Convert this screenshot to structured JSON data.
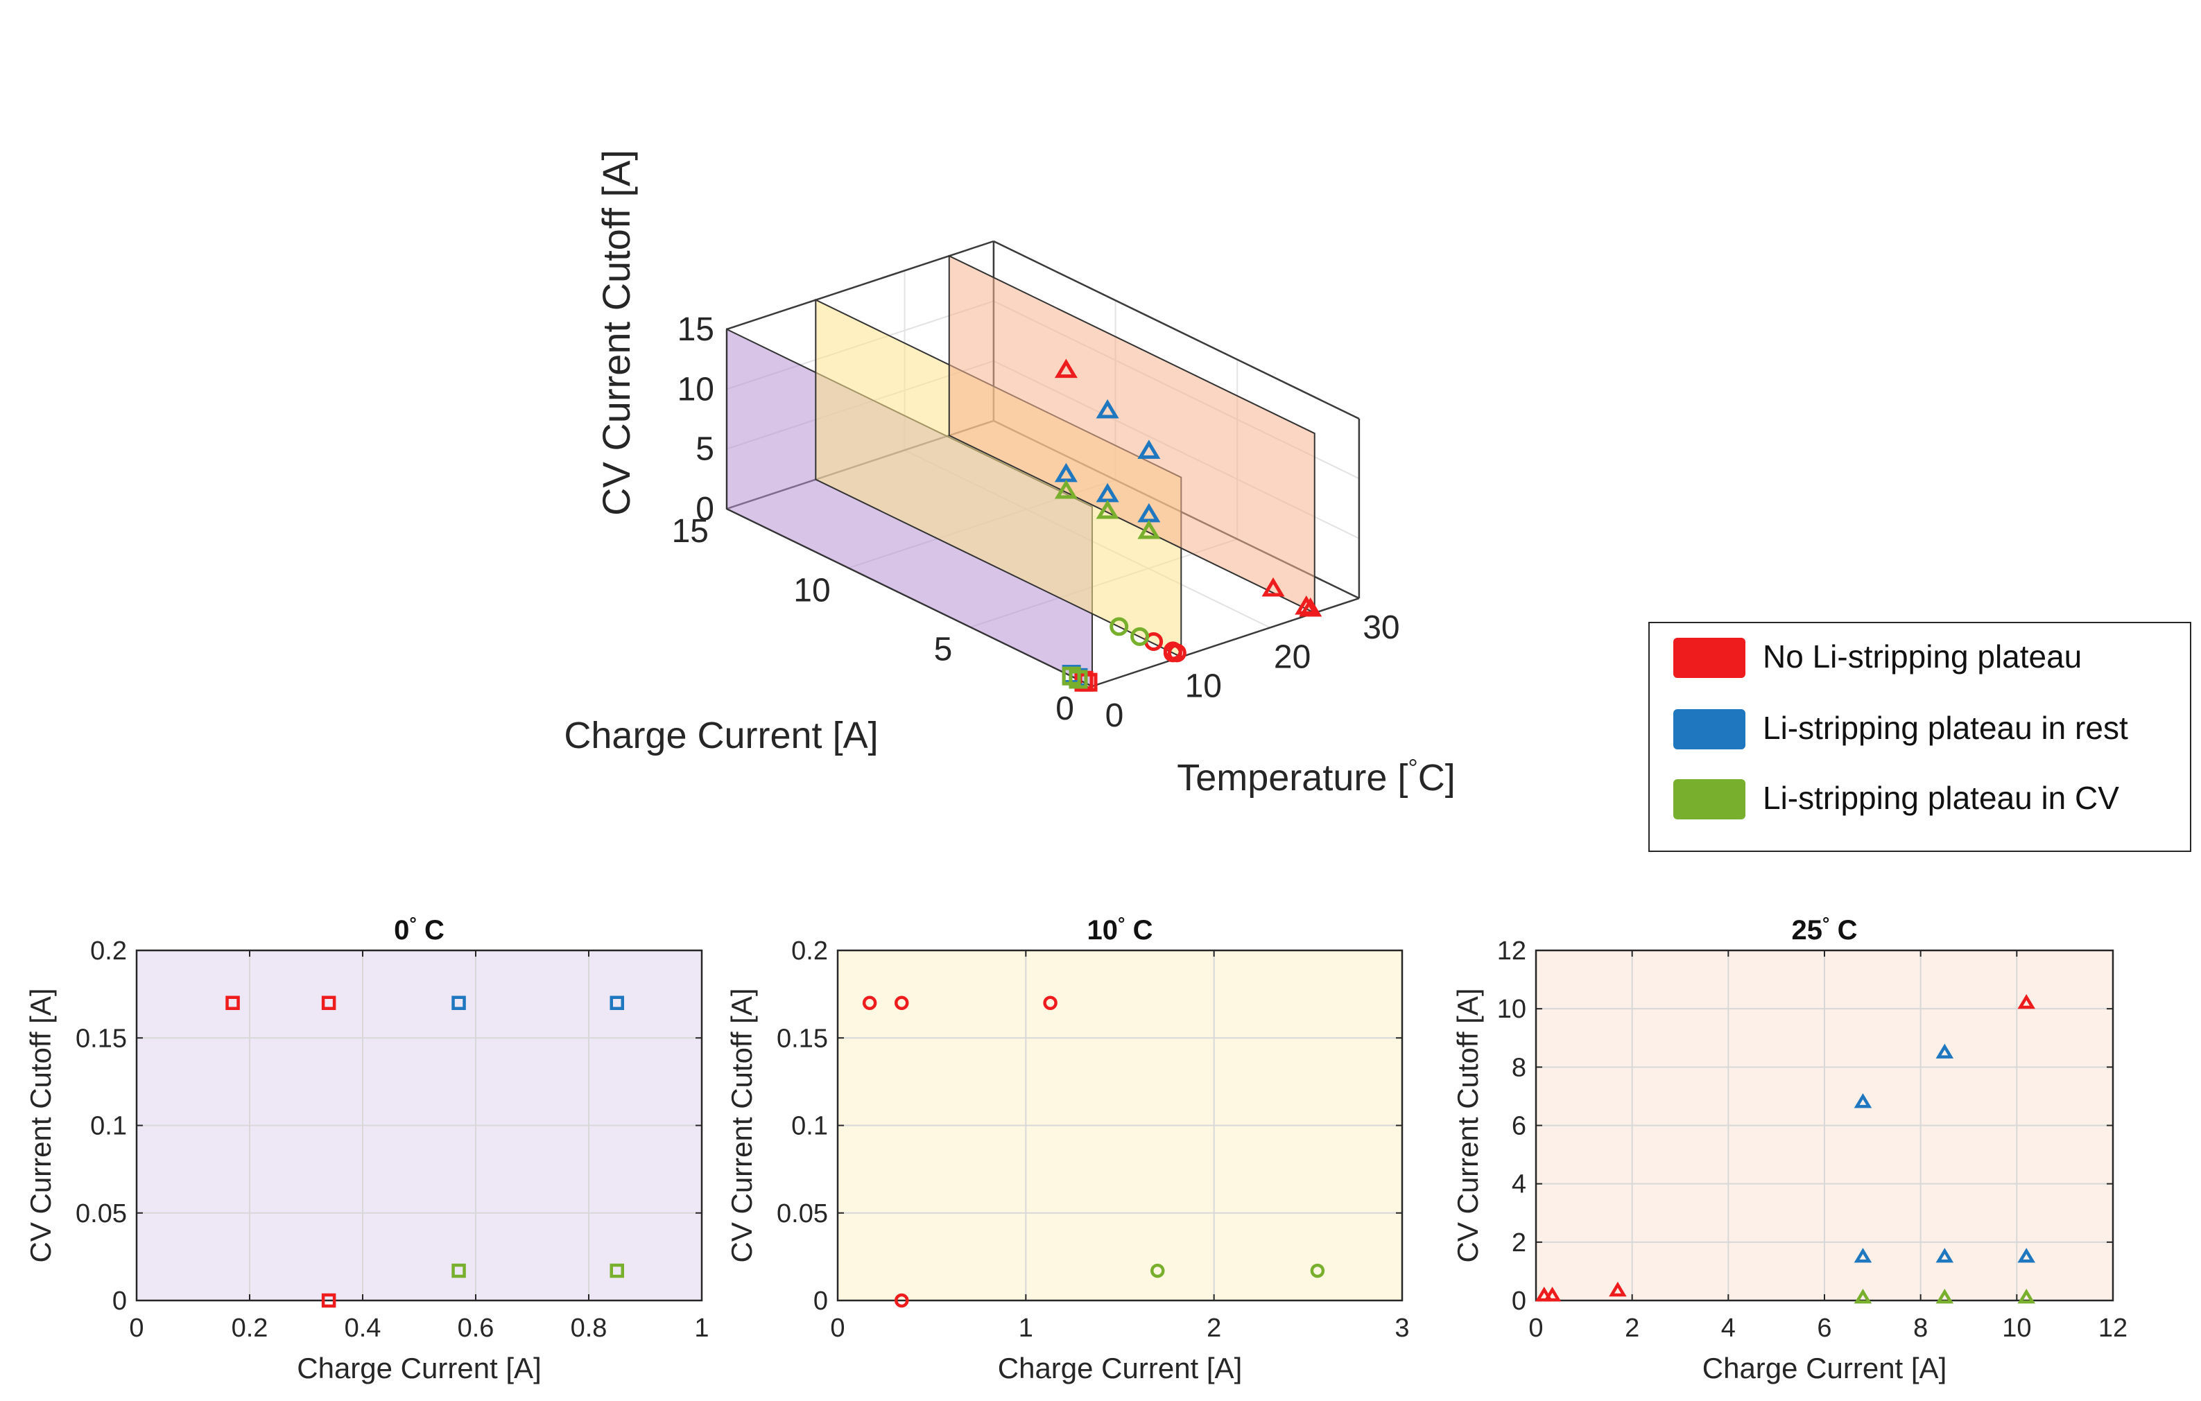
{
  "colors": {
    "red": "#ee1c1c",
    "blue": "#1f77c0",
    "green": "#78b02e",
    "plane_purple": "#b693d4",
    "plane_yellow": "#fde48c",
    "plane_orange": "#f8b490",
    "bg_purple": "#eee8f6",
    "bg_yellow": "#fef8e3",
    "bg_orange": "#fcf0e8"
  },
  "legend": {
    "entries": [
      {
        "label": "No Li-stripping plateau",
        "color": "#ee1c1c"
      },
      {
        "label": "Li-stripping plateau in rest",
        "color": "#1f77c0"
      },
      {
        "label": "Li-stripping plateau in CV",
        "color": "#78b02e"
      }
    ]
  },
  "chart_data": [
    {
      "type": "scatter3d",
      "title": "",
      "zlabel": "CV Current Cutoff [A]",
      "ylabel": "Charge Current [A]",
      "xlabel_prefix": "Temperature [",
      "xlabel_deg": "°",
      "xlabel_suffix": "C]",
      "xlim": [
        0,
        30
      ],
      "ylim": [
        0,
        15
      ],
      "zlim": [
        0,
        15
      ],
      "xticks": [
        "0",
        "10",
        "20",
        "30"
      ],
      "yticks": [
        "0",
        "5",
        "10",
        "15"
      ],
      "zticks": [
        "0",
        "5",
        "10",
        "15"
      ],
      "planes": [
        {
          "temperature": 0,
          "color": "plane_purple"
        },
        {
          "temperature": 10,
          "color": "plane_yellow"
        },
        {
          "temperature": 25,
          "color": "plane_orange"
        }
      ],
      "points": [
        {
          "t": 0,
          "x": 0.17,
          "y": 0.17,
          "marker": "square",
          "color": "red"
        },
        {
          "t": 0,
          "x": 0.34,
          "y": 0.17,
          "marker": "square",
          "color": "red"
        },
        {
          "t": 0,
          "x": 0.34,
          "y": 0,
          "marker": "square",
          "color": "red"
        },
        {
          "t": 0,
          "x": 0.57,
          "y": 0.17,
          "marker": "square",
          "color": "blue"
        },
        {
          "t": 0,
          "x": 0.85,
          "y": 0.17,
          "marker": "square",
          "color": "blue"
        },
        {
          "t": 0,
          "x": 0.57,
          "y": 0.017,
          "marker": "square",
          "color": "green"
        },
        {
          "t": 0,
          "x": 0.85,
          "y": 0.017,
          "marker": "square",
          "color": "green"
        },
        {
          "t": 10,
          "x": 0.17,
          "y": 0.17,
          "marker": "circle",
          "color": "red"
        },
        {
          "t": 10,
          "x": 0.34,
          "y": 0.17,
          "marker": "circle",
          "color": "red"
        },
        {
          "t": 10,
          "x": 1.13,
          "y": 0.17,
          "marker": "circle",
          "color": "red"
        },
        {
          "t": 10,
          "x": 0.34,
          "y": 0,
          "marker": "circle",
          "color": "red"
        },
        {
          "t": 10,
          "x": 1.7,
          "y": 0.017,
          "marker": "circle",
          "color": "green"
        },
        {
          "t": 10,
          "x": 2.55,
          "y": 0.017,
          "marker": "circle",
          "color": "green"
        },
        {
          "t": 25,
          "x": 0.17,
          "y": 0.17,
          "marker": "triangle",
          "color": "red"
        },
        {
          "t": 25,
          "x": 0.34,
          "y": 0.17,
          "marker": "triangle",
          "color": "red"
        },
        {
          "t": 25,
          "x": 1.7,
          "y": 0.34,
          "marker": "triangle",
          "color": "red"
        },
        {
          "t": 25,
          "x": 10.2,
          "y": 10.2,
          "marker": "triangle",
          "color": "red"
        },
        {
          "t": 25,
          "x": 6.8,
          "y": 6.8,
          "marker": "triangle",
          "color": "blue"
        },
        {
          "t": 25,
          "x": 8.5,
          "y": 8.5,
          "marker": "triangle",
          "color": "blue"
        },
        {
          "t": 25,
          "x": 6.8,
          "y": 1.5,
          "marker": "triangle",
          "color": "blue"
        },
        {
          "t": 25,
          "x": 8.5,
          "y": 1.5,
          "marker": "triangle",
          "color": "blue"
        },
        {
          "t": 25,
          "x": 10.2,
          "y": 1.5,
          "marker": "triangle",
          "color": "blue"
        },
        {
          "t": 25,
          "x": 6.8,
          "y": 0.1,
          "marker": "triangle",
          "color": "green"
        },
        {
          "t": 25,
          "x": 8.5,
          "y": 0.1,
          "marker": "triangle",
          "color": "green"
        },
        {
          "t": 25,
          "x": 10.2,
          "y": 0.1,
          "marker": "triangle",
          "color": "green"
        }
      ]
    },
    {
      "type": "scatter",
      "title_prefix": "0",
      "title_deg": "°",
      "title_suffix": " C",
      "xlabel": "Charge Current [A]",
      "ylabel": "CV Current Cutoff [A]",
      "xlim": [
        0,
        1
      ],
      "ylim": [
        0,
        0.2
      ],
      "xticks": [
        0,
        0.2,
        0.4,
        0.6,
        0.8,
        1
      ],
      "xtick_labels": [
        "0",
        "0.2",
        "0.4",
        "0.6",
        "0.8",
        "1"
      ],
      "yticks": [
        0,
        0.05,
        0.1,
        0.15,
        0.2
      ],
      "ytick_labels": [
        "0",
        "0.05",
        "0.1",
        "0.15",
        "0.2"
      ],
      "grid": true,
      "background": "bg_purple",
      "marker": "square",
      "points": [
        {
          "x": 0.17,
          "y": 0.17,
          "color": "red"
        },
        {
          "x": 0.34,
          "y": 0.17,
          "color": "red"
        },
        {
          "x": 0.34,
          "y": 0,
          "color": "red"
        },
        {
          "x": 0.57,
          "y": 0.17,
          "color": "blue"
        },
        {
          "x": 0.85,
          "y": 0.17,
          "color": "blue"
        },
        {
          "x": 0.57,
          "y": 0.017,
          "color": "green"
        },
        {
          "x": 0.85,
          "y": 0.017,
          "color": "green"
        }
      ]
    },
    {
      "type": "scatter",
      "title_prefix": "10",
      "title_deg": "°",
      "title_suffix": " C",
      "xlabel": "Charge Current [A]",
      "ylabel": "CV Current Cutoff [A]",
      "xlim": [
        0,
        3
      ],
      "ylim": [
        0,
        0.2
      ],
      "xticks": [
        0,
        1,
        2,
        3
      ],
      "xtick_labels": [
        "0",
        "1",
        "2",
        "3"
      ],
      "yticks": [
        0,
        0.05,
        0.1,
        0.15,
        0.2
      ],
      "ytick_labels": [
        "0",
        "0.05",
        "0.1",
        "0.15",
        "0.2"
      ],
      "grid": true,
      "background": "bg_yellow",
      "marker": "circle",
      "points": [
        {
          "x": 0.17,
          "y": 0.17,
          "color": "red"
        },
        {
          "x": 0.34,
          "y": 0.17,
          "color": "red"
        },
        {
          "x": 1.13,
          "y": 0.17,
          "color": "red"
        },
        {
          "x": 0.34,
          "y": 0,
          "color": "red"
        },
        {
          "x": 1.7,
          "y": 0.017,
          "color": "green"
        },
        {
          "x": 2.55,
          "y": 0.017,
          "color": "green"
        }
      ]
    },
    {
      "type": "scatter",
      "title_prefix": "25",
      "title_deg": "°",
      "title_suffix": " C",
      "xlabel": "Charge Current [A]",
      "ylabel": "CV Current Cutoff [A]",
      "xlim": [
        0,
        12
      ],
      "ylim": [
        0,
        12
      ],
      "xticks": [
        0,
        2,
        4,
        6,
        8,
        10,
        12
      ],
      "xtick_labels": [
        "0",
        "2",
        "4",
        "6",
        "8",
        "10",
        "12"
      ],
      "yticks": [
        0,
        2,
        4,
        6,
        8,
        10,
        12
      ],
      "ytick_labels": [
        "0",
        "2",
        "4",
        "6",
        "8",
        "10",
        "12"
      ],
      "grid": true,
      "background": "bg_orange",
      "marker": "triangle",
      "points": [
        {
          "x": 0.17,
          "y": 0.17,
          "color": "red"
        },
        {
          "x": 0.34,
          "y": 0.17,
          "color": "red"
        },
        {
          "x": 1.7,
          "y": 0.34,
          "color": "red"
        },
        {
          "x": 10.2,
          "y": 10.2,
          "color": "red"
        },
        {
          "x": 6.8,
          "y": 6.8,
          "color": "blue"
        },
        {
          "x": 8.5,
          "y": 8.5,
          "color": "blue"
        },
        {
          "x": 6.8,
          "y": 1.5,
          "color": "blue"
        },
        {
          "x": 8.5,
          "y": 1.5,
          "color": "blue"
        },
        {
          "x": 10.2,
          "y": 1.5,
          "color": "blue"
        },
        {
          "x": 6.8,
          "y": 0.1,
          "color": "green"
        },
        {
          "x": 8.5,
          "y": 0.1,
          "color": "green"
        },
        {
          "x": 10.2,
          "y": 0.1,
          "color": "green"
        }
      ]
    }
  ]
}
